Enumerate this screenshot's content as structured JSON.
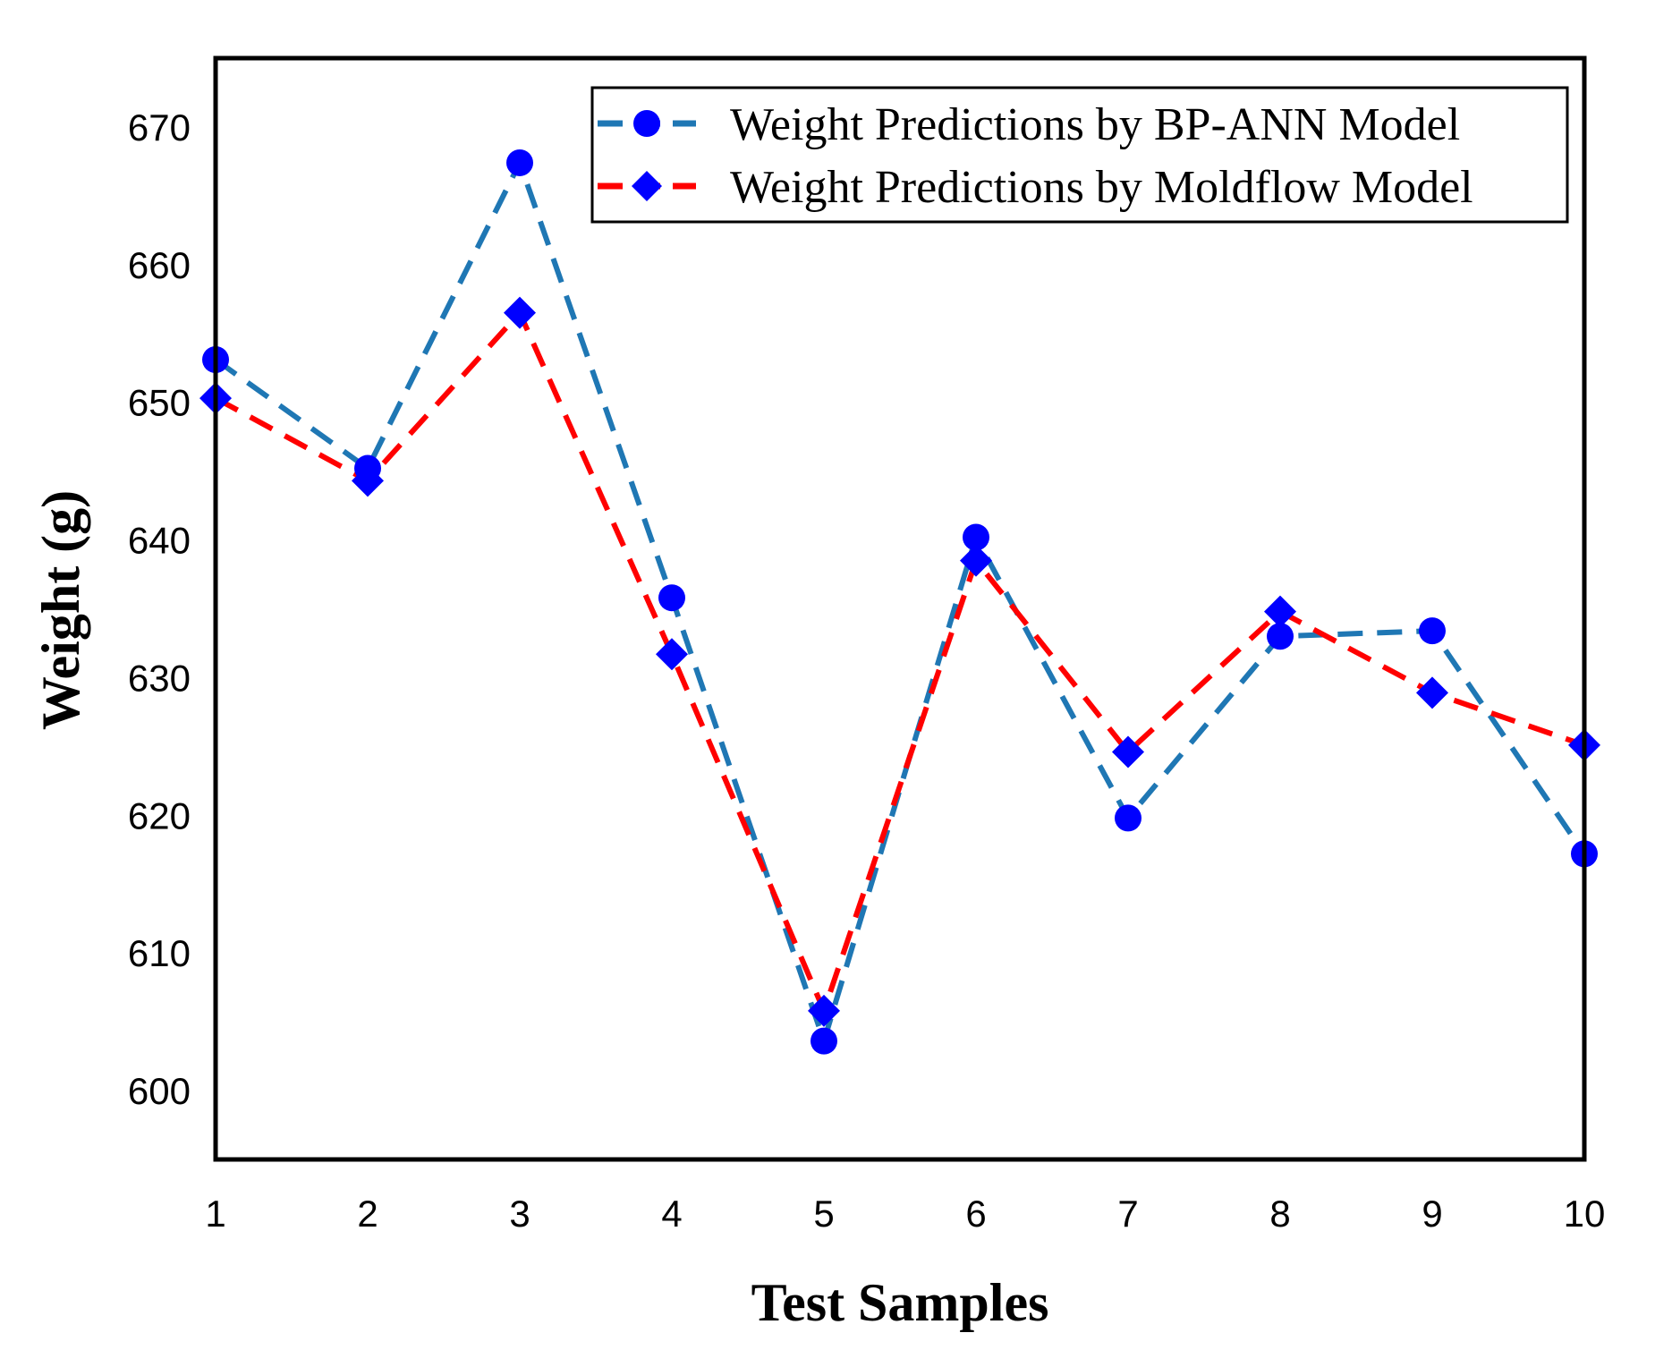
{
  "chart_data": {
    "type": "line",
    "title": "",
    "xlabel": "Test Samples",
    "ylabel": "Weight (g)",
    "x": [
      1,
      2,
      3,
      4,
      5,
      6,
      7,
      8,
      9,
      10
    ],
    "xlim": [
      1,
      10
    ],
    "ylim": [
      595,
      675
    ],
    "xticks": [
      "1",
      "2",
      "3",
      "4",
      "5",
      "6",
      "7",
      "8",
      "9",
      "10"
    ],
    "yticks": [
      600,
      610,
      620,
      630,
      640,
      650,
      660,
      670
    ],
    "grid": false,
    "legend_position": "top-right",
    "series": [
      {
        "name": "Weight Predictions by BP-ANN Model",
        "values": [
          653.1,
          645.2,
          667.4,
          635.8,
          603.6,
          640.2,
          619.8,
          633.0,
          633.4,
          617.2
        ],
        "line_color": "#1f77b4",
        "marker_color": "#0000ff",
        "marker": "circle",
        "line_style": "dashed"
      },
      {
        "name": "Weight Predictions by Moldflow Model",
        "values": [
          650.3,
          644.3,
          656.5,
          631.7,
          605.8,
          638.5,
          624.6,
          634.8,
          628.9,
          625.1
        ],
        "line_color": "#ff0000",
        "marker_color": "#0000ff",
        "marker": "diamond",
        "line_style": "dashed"
      }
    ]
  }
}
